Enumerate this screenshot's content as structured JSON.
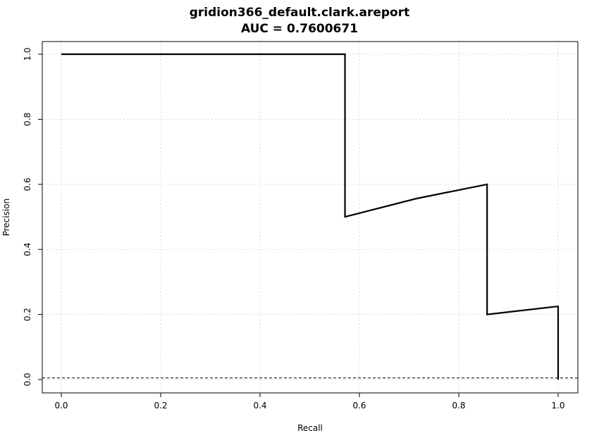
{
  "chart_data": {
    "type": "line",
    "title": "gridion366_default.clark.areport",
    "subtitle": "AUC = 0.7600671",
    "xlabel": "Recall",
    "ylabel": "Precision",
    "xlim": [
      -0.04,
      1.04
    ],
    "ylim": [
      -0.04,
      1.04
    ],
    "xticks": [
      "0.0",
      "0.2",
      "0.4",
      "0.6",
      "0.8",
      "1.0"
    ],
    "yticks": [
      "0.0",
      "0.2",
      "0.4",
      "0.6",
      "0.8",
      "1.0"
    ],
    "grid": true,
    "baseline": 0.005,
    "series": [
      {
        "x": [
          0.0,
          0.571,
          0.571,
          0.714,
          0.857,
          0.857,
          1.0,
          1.0
        ],
        "y": [
          1.0,
          1.0,
          0.5,
          0.556,
          0.6,
          0.2,
          0.225,
          0.0
        ]
      }
    ],
    "colors": {
      "line": "#000000",
      "grid": "#d9d9d9",
      "frame": "#000000"
    }
  }
}
